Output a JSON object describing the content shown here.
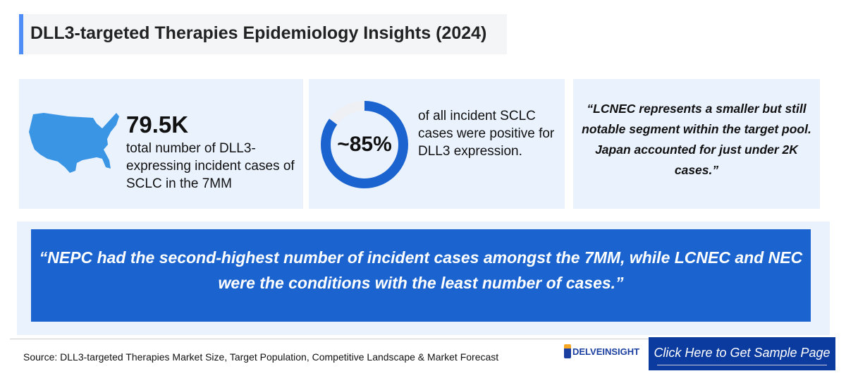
{
  "title": "DLL3-targeted Therapies Epidemiology Insights (2024)",
  "card1": {
    "value": "79.5K",
    "description": "total number of DLL3-expressing incident cases of SCLC in the 7MM",
    "icon": "usa-map-icon"
  },
  "card2": {
    "percent_label": "~85%",
    "percent_value": 85,
    "description": "of all incident SCLC cases were positive for DLL3 expression.",
    "ring_color": "#1b64d0",
    "ring_track_color": "#eef0f4"
  },
  "card3": {
    "quote": "“LCNEC represents a smaller but still notable segment within the target pool. Japan accounted for just under 2K cases.”"
  },
  "banner": {
    "quote": "“NEPC had the second-highest number of incident cases amongst the 7MM, while LCNEC and NEC were the conditions with the least number of cases.”"
  },
  "footer": {
    "source": "Source: DLL3-targeted Therapies Market Size, Target Population, Competitive Landscape & Market Forecast",
    "logo_text": "DELVEINSIGHT",
    "cta": "Click Here to Get Sample Page"
  },
  "colors": {
    "accent": "#4f8ef7",
    "banner": "#1b64d0",
    "cta": "#0b3b9e",
    "card_bg": "#eaf2fe"
  }
}
